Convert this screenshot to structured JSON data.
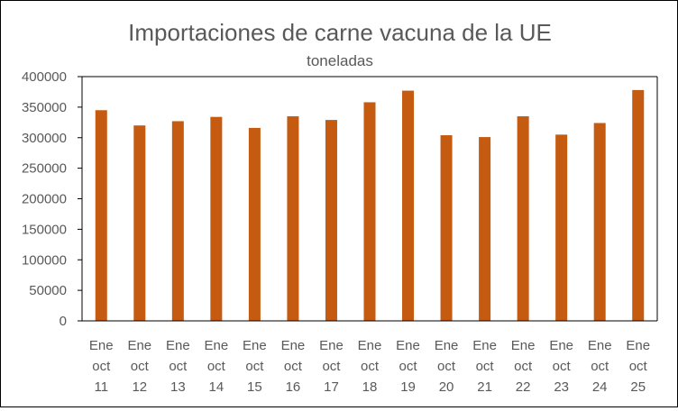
{
  "chart_data": {
    "type": "bar",
    "title": "Importaciones de carne vacuna de la UE",
    "subtitle": "toneladas",
    "xlabel": "",
    "ylabel": "",
    "ylim": [
      0,
      400000
    ],
    "yticks": [
      "0",
      "50000",
      "100000",
      "150000",
      "200000",
      "250000",
      "300000",
      "350000",
      "400000"
    ],
    "categories": [
      [
        "Ene",
        "oct",
        "11"
      ],
      [
        "Ene",
        "oct",
        "12"
      ],
      [
        "Ene",
        "oct",
        "13"
      ],
      [
        "Ene",
        "oct",
        "14"
      ],
      [
        "Ene",
        "oct",
        "15"
      ],
      [
        "Ene",
        "oct",
        "16"
      ],
      [
        "Ene",
        "oct",
        "17"
      ],
      [
        "Ene",
        "oct",
        "18"
      ],
      [
        "Ene",
        "oct",
        "19"
      ],
      [
        "Ene",
        "oct",
        "20"
      ],
      [
        "Ene",
        "oct",
        "21"
      ],
      [
        "Ene",
        "oct",
        "22"
      ],
      [
        "Ene",
        "oct",
        "23"
      ],
      [
        "Ene",
        "oct",
        "24"
      ],
      [
        "Ene",
        "oct",
        "25"
      ]
    ],
    "values": [
      345000,
      320000,
      327000,
      334000,
      316000,
      335000,
      329000,
      358000,
      377000,
      304000,
      301000,
      335000,
      305000,
      324000,
      378000
    ],
    "bar_color": "#C55A11",
    "axis_color": "#000000",
    "grid": false,
    "legend": "none"
  }
}
